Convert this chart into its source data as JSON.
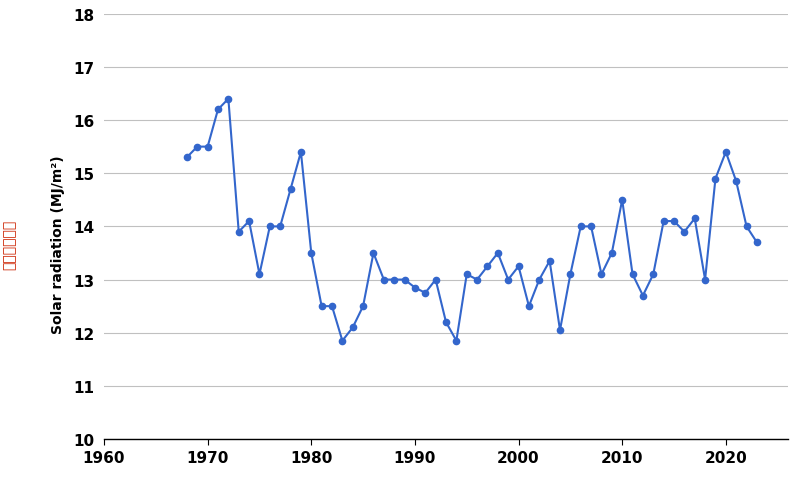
{
  "years": [
    1968,
    1969,
    1970,
    1971,
    1972,
    1973,
    1974,
    1975,
    1976,
    1977,
    1978,
    1979,
    1980,
    1981,
    1982,
    1983,
    1984,
    1985,
    1986,
    1987,
    1988,
    1989,
    1990,
    1991,
    1992,
    1993,
    1994,
    1995,
    1996,
    1997,
    1998,
    1999,
    2000,
    2001,
    2002,
    2003,
    2004,
    2005,
    2006,
    2007,
    2008,
    2009,
    2010,
    2011,
    2012,
    2013,
    2014,
    2015,
    2016,
    2017,
    2018,
    2019,
    2020,
    2021,
    2022,
    2023
  ],
  "values": [
    15.3,
    15.5,
    15.5,
    16.2,
    16.4,
    13.9,
    14.1,
    13.1,
    14.0,
    14.0,
    14.7,
    15.4,
    13.5,
    12.5,
    12.5,
    11.85,
    12.1,
    12.5,
    13.5,
    13.0,
    13.0,
    13.0,
    12.85,
    12.75,
    13.0,
    12.2,
    11.85,
    13.1,
    13.0,
    13.25,
    13.5,
    13.0,
    13.25,
    12.5,
    13.0,
    13.35,
    12.05,
    13.1,
    14.0,
    14.0,
    13.1,
    13.5,
    14.5,
    13.1,
    12.7,
    13.1,
    14.1,
    14.1,
    13.9,
    14.15,
    13.0,
    14.9,
    15.4,
    14.85,
    14.0,
    13.7
  ],
  "line_color": "#3366CC",
  "marker_color": "#3366CC",
  "marker_size": 4.5,
  "line_width": 1.5,
  "xlim": [
    1960,
    2026
  ],
  "ylim": [
    10,
    18
  ],
  "yticks": [
    10,
    11,
    12,
    13,
    14,
    15,
    16,
    17,
    18
  ],
  "xticks": [
    1960,
    1970,
    1980,
    1990,
    2000,
    2010,
    2020
  ],
  "ylabel_chinese": "太陽總輺射量",
  "ylabel_english": "Solar radiation (MJ/m²)",
  "grid_color": "#C0C0C0",
  "bg_color": "#FFFFFF",
  "plot_bg_color": "#FFFFFF",
  "chinese_color": "#CC2200",
  "english_color": "#000000",
  "tick_label_fontsize": 11,
  "tick_label_fontweight": "bold"
}
